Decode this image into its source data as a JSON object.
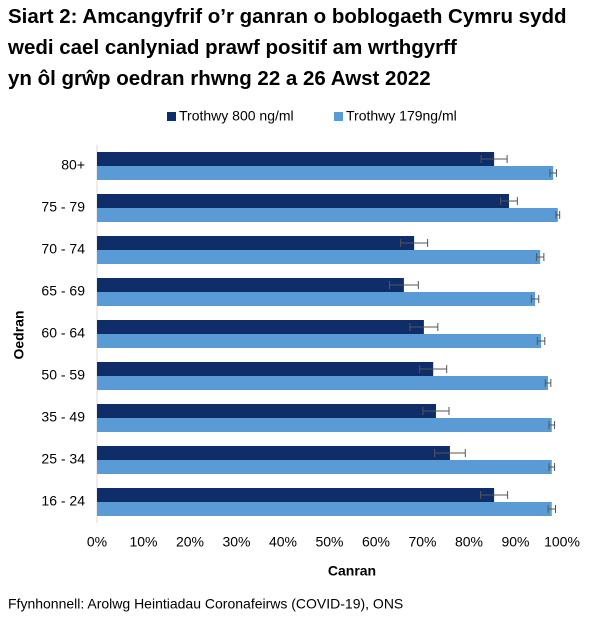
{
  "chart_data": {
    "type": "hbar",
    "title": "Siart 2: Amcangyfrif o’r ganran o boblogaeth Cymru sydd wedi cael canlyniad prawf positif am wrthgyrff yn ôl grŵp oedran rhwng 22 a 26 Awst 2022",
    "x_label": "Canran",
    "y_label": "Oedran",
    "source": "Ffynhonnell: Arolwg Heintiadau Coronafeirws (COVID-19), ONS",
    "categories": [
      "80+",
      "75 - 79",
      "70 - 74",
      "65 - 69",
      "60 - 64",
      "50 - 59",
      "35 - 49",
      "25 - 34",
      "16 - 24"
    ],
    "series": [
      {
        "name": "Trothwy 800 ng/ml",
        "color": "#0e2d69",
        "values": [
          85.4,
          88.6,
          68.2,
          66.0,
          70.3,
          72.3,
          72.9,
          75.9,
          85.4
        ],
        "errors": [
          2.8,
          1.8,
          2.9,
          3.1,
          3.0,
          2.9,
          2.8,
          3.3,
          2.9
        ]
      },
      {
        "name": "Trothwy 179ng/ml",
        "color": "#5b9bd5",
        "values": [
          98.1,
          99.1,
          95.3,
          94.2,
          95.5,
          97.0,
          97.8,
          97.8,
          97.8
        ],
        "errors": [
          0.7,
          0.4,
          0.8,
          0.8,
          0.8,
          0.6,
          0.6,
          0.6,
          0.8
        ]
      }
    ],
    "xlim": [
      0,
      100
    ],
    "xticks": [
      {
        "value": 0,
        "label": "0%"
      },
      {
        "value": 10,
        "label": "10%"
      },
      {
        "value": 20,
        "label": "20%"
      },
      {
        "value": 30,
        "label": "30%"
      },
      {
        "value": 40,
        "label": "40%"
      },
      {
        "value": 50,
        "label": "50%"
      },
      {
        "value": 60,
        "label": "60%"
      },
      {
        "value": 70,
        "label": "70%"
      },
      {
        "value": 80,
        "label": "80%"
      },
      {
        "value": 90,
        "label": "90%"
      },
      {
        "value": 100,
        "label": "100%"
      }
    ],
    "grid": false,
    "legend": "top"
  }
}
